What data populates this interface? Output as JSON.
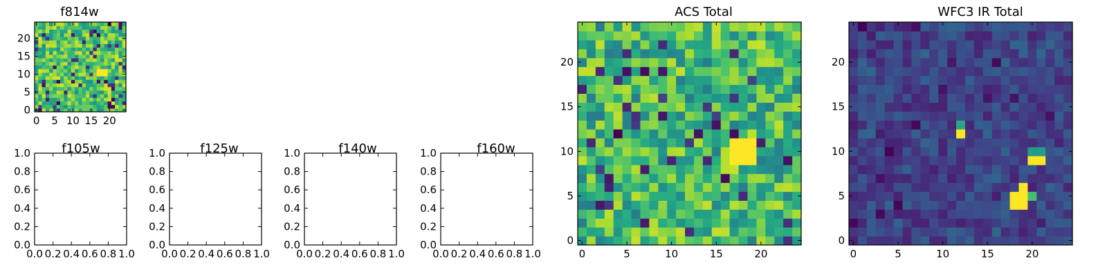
{
  "chart_data": [
    {
      "type": "heatmap",
      "title": "f814w",
      "x_ticks": [
        "0",
        "5",
        "10",
        "15",
        "20"
      ],
      "y_ticks": [
        "0",
        "5",
        "10",
        "15",
        "20"
      ],
      "xlim": [
        -0.5,
        24.5
      ],
      "ylim": [
        -0.5,
        24.5
      ],
      "grid_size": 25,
      "colormap": "viridis",
      "bright_regions": [
        {
          "x": [
            17,
            19
          ],
          "y": [
            10,
            11
          ],
          "level": 1.0
        },
        {
          "x": [
            16,
            16
          ],
          "y": [
            9,
            10
          ],
          "level": 0.85
        }
      ],
      "background_level": [
        0.5,
        0.95
      ],
      "seed": 814
    },
    {
      "type": "empty",
      "title": "f105w",
      "x_ticks": [
        "0.0",
        "0.2",
        "0.4",
        "0.6",
        "0.8",
        "1.0"
      ],
      "y_ticks": [
        "0.0",
        "0.2",
        "0.4",
        "0.6",
        "0.8",
        "1.0"
      ],
      "xlim": [
        0,
        1
      ],
      "ylim": [
        0,
        1
      ]
    },
    {
      "type": "empty",
      "title": "f125w",
      "x_ticks": [
        "0.0",
        "0.2",
        "0.4",
        "0.6",
        "0.8",
        "1.0"
      ],
      "y_ticks": [
        "0.0",
        "0.2",
        "0.4",
        "0.6",
        "0.8",
        "1.0"
      ],
      "xlim": [
        0,
        1
      ],
      "ylim": [
        0,
        1
      ]
    },
    {
      "type": "empty",
      "title": "f140w",
      "x_ticks": [
        "0.0",
        "0.2",
        "0.4",
        "0.6",
        "0.8",
        "1.0"
      ],
      "y_ticks": [
        "0.0",
        "0.2",
        "0.4",
        "0.6",
        "0.8",
        "1.0"
      ],
      "xlim": [
        0,
        1
      ],
      "ylim": [
        0,
        1
      ]
    },
    {
      "type": "empty",
      "title": "f160w",
      "x_ticks": [
        "0.0",
        "0.2",
        "0.4",
        "0.6",
        "0.8",
        "1.0"
      ],
      "y_ticks": [
        "0.0",
        "0.2",
        "0.4",
        "0.6",
        "0.8",
        "1.0"
      ],
      "xlim": [
        0,
        1
      ],
      "ylim": [
        0,
        1
      ]
    },
    {
      "type": "heatmap",
      "title": "ACS Total",
      "x_ticks": [
        "0",
        "5",
        "10",
        "15",
        "20"
      ],
      "y_ticks": [
        "0",
        "5",
        "10",
        "15",
        "20"
      ],
      "xlim": [
        -0.5,
        24.5
      ],
      "ylim": [
        -0.5,
        24.5
      ],
      "grid_size": 25,
      "colormap": "viridis",
      "bright_regions": [
        {
          "x": [
            17,
            19
          ],
          "y": [
            9,
            11
          ],
          "level": 1.0
        },
        {
          "x": [
            16,
            16
          ],
          "y": [
            8,
            10
          ],
          "level": 0.9
        }
      ],
      "background_level": [
        0.45,
        0.92
      ],
      "seed": 1234
    },
    {
      "type": "heatmap",
      "title": "WFC3 IR Total",
      "x_ticks": [
        "0",
        "5",
        "10",
        "15",
        "20"
      ],
      "y_ticks": [
        "0",
        "5",
        "10",
        "15",
        "20"
      ],
      "xlim": [
        -0.5,
        24.5
      ],
      "ylim": [
        -0.5,
        24.5
      ],
      "grid_size": 25,
      "colormap": "viridis",
      "bright_regions": [
        {
          "x": [
            18,
            19
          ],
          "y": [
            4,
            5
          ],
          "level": 1.0
        },
        {
          "x": [
            19,
            19
          ],
          "y": [
            6,
            6
          ],
          "level": 1.0
        },
        {
          "x": [
            20,
            21
          ],
          "y": [
            9,
            9
          ],
          "level": 1.0
        },
        {
          "x": [
            20,
            21
          ],
          "y": [
            10,
            10
          ],
          "level": 0.55
        },
        {
          "x": [
            12,
            12
          ],
          "y": [
            12,
            12
          ],
          "level": 1.0
        },
        {
          "x": [
            12,
            12
          ],
          "y": [
            13,
            13
          ],
          "level": 0.6
        },
        {
          "x": [
            20,
            20
          ],
          "y": [
            5,
            5
          ],
          "level": 0.7
        }
      ],
      "background_level": [
        0.12,
        0.4
      ],
      "seed": 4321
    }
  ]
}
